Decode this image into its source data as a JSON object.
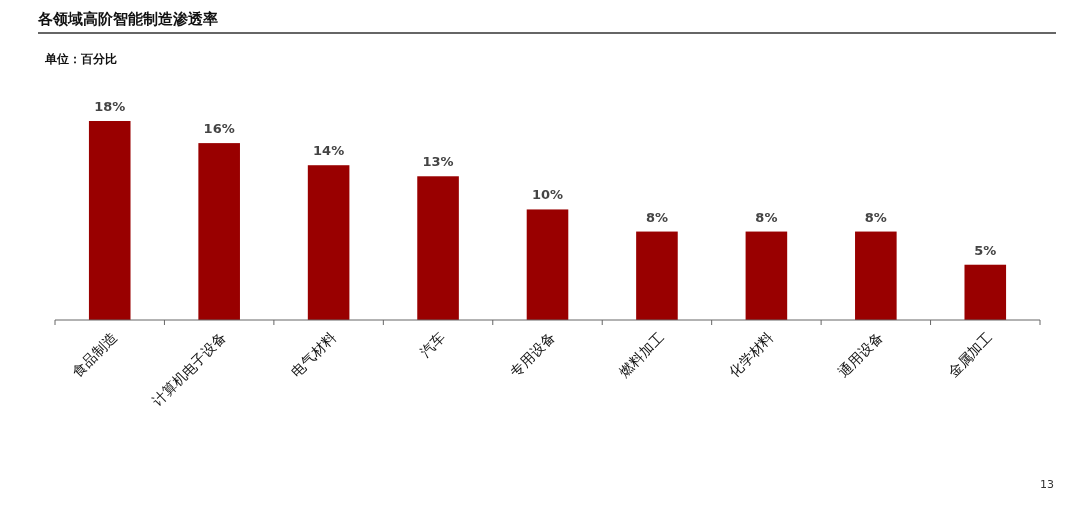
{
  "chart_data": {
    "type": "bar",
    "title": "各领域高阶智能制造渗透率",
    "subtitle": "单位：百分比",
    "categories": [
      "食品制造",
      "计算机电子设备",
      "电气材料",
      "汽车",
      "专用设备",
      "燃料加工",
      "化学材料",
      "通用设备",
      "金属加工"
    ],
    "values": [
      18,
      16,
      14,
      13,
      10,
      8,
      8,
      8,
      5
    ],
    "value_labels": [
      "18%",
      "16%",
      "14%",
      "13%",
      "10%",
      "8%",
      "8%",
      "8%",
      "5%"
    ],
    "color": "#990000",
    "annotations": [
      "13"
    ]
  }
}
